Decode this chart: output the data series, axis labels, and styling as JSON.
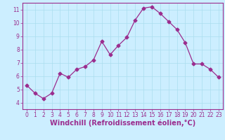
{
  "x": [
    0,
    1,
    2,
    3,
    4,
    5,
    6,
    7,
    8,
    9,
    10,
    11,
    12,
    13,
    14,
    15,
    16,
    17,
    18,
    19,
    20,
    21,
    22,
    23
  ],
  "y": [
    5.3,
    4.7,
    4.3,
    4.7,
    6.2,
    5.9,
    6.5,
    6.7,
    7.2,
    8.6,
    7.6,
    8.3,
    8.9,
    10.2,
    11.1,
    11.2,
    10.7,
    10.1,
    9.5,
    8.5,
    6.9,
    6.9,
    6.5,
    5.9
  ],
  "line_color": "#9b2d8e",
  "marker": "D",
  "marker_size": 2.5,
  "bg_color": "#cceeff",
  "grid_color": "#aaddee",
  "xlabel": "Windchill (Refroidissement éolien,°C)",
  "xlabel_color": "#9b2d8e",
  "tick_color": "#9b2d8e",
  "spine_color": "#9b2d8e",
  "xlim": [
    -0.5,
    23.5
  ],
  "ylim": [
    3.5,
    11.5
  ],
  "yticks": [
    4,
    5,
    6,
    7,
    8,
    9,
    10,
    11
  ],
  "xticks": [
    0,
    1,
    2,
    3,
    4,
    5,
    6,
    7,
    8,
    9,
    10,
    11,
    12,
    13,
    14,
    15,
    16,
    17,
    18,
    19,
    20,
    21,
    22,
    23
  ],
  "tick_fontsize": 5.5,
  "xlabel_fontsize": 7.0
}
